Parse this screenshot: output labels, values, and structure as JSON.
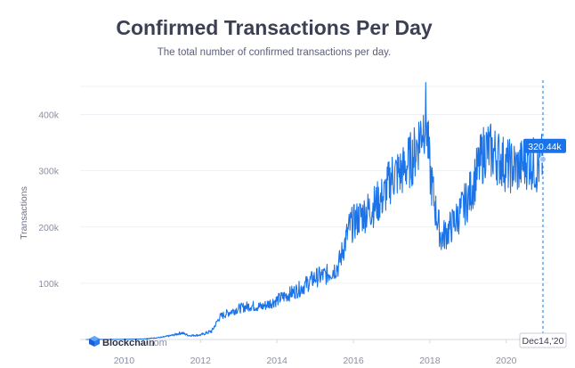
{
  "colors": {
    "line": "#1a73e8",
    "title": "#3c4053",
    "tick": "#8a8fa6",
    "grid": "#eef0f5",
    "tooltip_bg": "#1a73e8"
  },
  "chart_data": {
    "type": "line",
    "title": "Confirmed Transactions Per Day",
    "subtitle": "The total number of confirmed transactions per day.",
    "ylabel": "Transactions",
    "xlabel": "",
    "xlim": [
      2008.85,
      2021.1
    ],
    "ylim": [
      0,
      450000
    ],
    "x_ticks": [
      2010,
      2012,
      2014,
      2016,
      2018,
      2020
    ],
    "x_tick_labels": [
      "2010",
      "2012",
      "2014",
      "2016",
      "2018",
      "2020"
    ],
    "y_ticks": [
      100000,
      200000,
      300000,
      400000
    ],
    "y_tick_labels": [
      "100k",
      "200k",
      "300k",
      "400k"
    ],
    "grid": true,
    "series": [
      {
        "x": [
          2009.0,
          2010.0,
          2010.5,
          2011.0,
          2011.3,
          2011.5,
          2011.7,
          2012.0,
          2012.3,
          2012.5,
          2012.8,
          2013.0,
          2013.3,
          2013.6,
          2014.0,
          2014.3,
          2014.6,
          2015.0,
          2015.3,
          2015.6,
          2015.9,
          2016.2,
          2016.5,
          2016.8,
          2017.0,
          2017.3,
          2017.6,
          2017.9,
          2018.0,
          2018.15,
          2018.3,
          2018.5,
          2018.7,
          2019.0,
          2019.2,
          2019.45,
          2019.7,
          2020.0,
          2020.3,
          2020.6,
          2020.8,
          2020.96
        ],
        "y": [
          0,
          300,
          1000,
          4000,
          8000,
          12000,
          7000,
          8000,
          15000,
          40000,
          50000,
          55000,
          60000,
          58000,
          70000,
          80000,
          90000,
          110000,
          115000,
          130000,
          200000,
          220000,
          235000,
          255000,
          290000,
          300000,
          330000,
          400000,
          300000,
          230000,
          180000,
          195000,
          215000,
          250000,
          290000,
          340000,
          330000,
          310000,
          305000,
          320000,
          305000,
          320440
        ]
      }
    ],
    "tooltip": {
      "value_label": "320.44k",
      "date_label": "Dec14,'20",
      "x": 2020.96,
      "y": 320440
    }
  },
  "branding": {
    "logo_text": "Blockchain",
    "logo_suffix": ".com"
  }
}
